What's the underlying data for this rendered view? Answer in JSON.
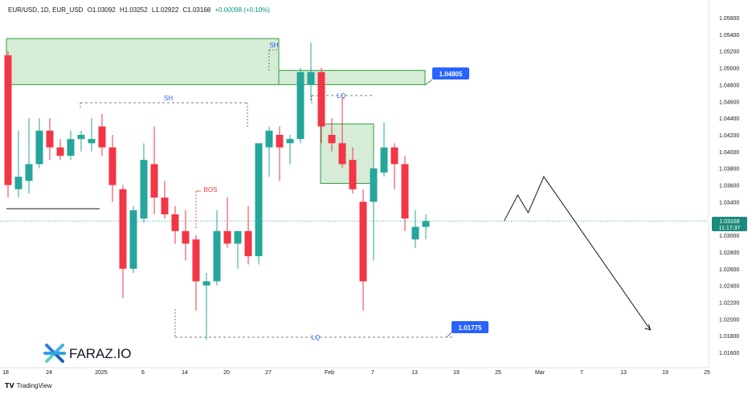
{
  "header": {
    "symbol": "EUR/USD, 1D, EUR_USD",
    "open": "O1.03092",
    "high": "H1.03252",
    "low": "L1.02922",
    "close": "C1.03168",
    "change": "+0.00098 (+0.10%)"
  },
  "footer": {
    "brand": "TradingView",
    "logo_text": "FARAZ.IO"
  },
  "colors": {
    "up": "#26a69a",
    "down": "#f23645",
    "zone_fill": "#c8e6c9",
    "zone_border": "#2e9e3e",
    "label_bg": "#2962ff",
    "price_bg": "#1b8a7a",
    "text": "#131722"
  },
  "chart_data": {
    "type": "candlestick",
    "ylim": [
      1.0145,
      1.058
    ],
    "y_ticks": [
      "1.05600",
      "1.05400",
      "1.05200",
      "1.05000",
      "1.04800",
      "1.04600",
      "1.04400",
      "1.04200",
      "1.04000",
      "1.03800",
      "1.03600",
      "1.03400",
      "1.03200",
      "1.03000",
      "1.02800",
      "1.02600",
      "1.02400",
      "1.02200",
      "1.02000",
      "1.01800",
      "1.01600"
    ],
    "x_ticks": [
      "18",
      "24",
      "2025",
      "6",
      "14",
      "20",
      "27",
      "Feb",
      "7",
      "13",
      "19",
      "25",
      "Mar",
      "7",
      "13",
      "19",
      "25"
    ],
    "ohlc": [
      [
        1.0515,
        1.052,
        1.0345,
        1.036
      ],
      [
        1.0355,
        1.0425,
        1.0345,
        1.037
      ],
      [
        1.0365,
        1.044,
        1.035,
        1.0385
      ],
      [
        1.0385,
        1.044,
        1.038,
        1.0425
      ],
      [
        1.0425,
        1.044,
        1.039,
        1.0405
      ],
      [
        1.0405,
        1.0415,
        1.039,
        1.0395
      ],
      [
        1.0395,
        1.0425,
        1.039,
        1.0415
      ],
      [
        1.0415,
        1.0425,
        1.04,
        1.042
      ],
      [
        1.041,
        1.044,
        1.04,
        1.0415
      ],
      [
        1.043,
        1.0445,
        1.0395,
        1.0405
      ],
      [
        1.0405,
        1.042,
        1.034,
        1.036
      ],
      [
        1.0355,
        1.036,
        1.0225,
        1.026
      ],
      [
        1.026,
        1.0335,
        1.0255,
        1.033
      ],
      [
        1.032,
        1.041,
        1.0315,
        1.039
      ],
      [
        1.0385,
        1.043,
        1.0325,
        1.0345
      ],
      [
        1.0345,
        1.0365,
        1.032,
        1.0325
      ],
      [
        1.0325,
        1.0335,
        1.029,
        1.0305
      ],
      [
        1.0305,
        1.033,
        1.027,
        1.029
      ],
      [
        1.0295,
        1.03,
        1.021,
        1.0245
      ],
      [
        1.024,
        1.0255,
        1.0175,
        1.0245
      ],
      [
        1.0245,
        1.033,
        1.024,
        1.0305
      ],
      [
        1.0305,
        1.0345,
        1.0285,
        1.029
      ],
      [
        1.029,
        1.0305,
        1.026,
        1.0305
      ],
      [
        1.0305,
        1.0335,
        1.0265,
        1.0275
      ],
      [
        1.0275,
        1.041,
        1.0265,
        1.041
      ],
      [
        1.0405,
        1.043,
        1.037,
        1.0425
      ],
      [
        1.042,
        1.043,
        1.0365,
        1.0405
      ],
      [
        1.041,
        1.042,
        1.0385,
        1.0415
      ],
      [
        1.0415,
        1.05,
        1.041,
        1.0495
      ],
      [
        1.048,
        1.053,
        1.046,
        1.0495
      ],
      [
        1.0495,
        1.05,
        1.041,
        1.043
      ],
      [
        1.042,
        1.044,
        1.04,
        1.041
      ],
      [
        1.041,
        1.0465,
        1.038,
        1.0385
      ],
      [
        1.039,
        1.0405,
        1.035,
        1.0355
      ],
      [
        1.034,
        1.0355,
        1.021,
        1.0245
      ],
      [
        1.034,
        1.0395,
        1.027,
        1.038
      ],
      [
        1.0375,
        1.0435,
        1.037,
        1.0405
      ],
      [
        1.0405,
        1.041,
        1.0355,
        1.0385
      ],
      [
        1.0385,
        1.0395,
        1.0305,
        1.032
      ],
      [
        1.0295,
        1.033,
        1.0285,
        1.031
      ],
      [
        1.031,
        1.0325,
        1.0295,
        1.0317
      ]
    ],
    "annotations": {
      "supply_zone_label": "SH",
      "sh_mid_label": "SH",
      "bos_label": "BOS",
      "lq_top_label": "LQ",
      "lq_bottom_label": "LQ",
      "level_upper": "1.04805",
      "level_lower": "1.01775",
      "price_label": "1.03168",
      "countdown": "11:17:37",
      "price_stub": "1.03"
    },
    "zones": [
      {
        "from": 0,
        "to": 33,
        "top": 1.0535,
        "bottom": 1.048
      },
      {
        "from": 34,
        "to": 50,
        "top": 1.0497,
        "bottom": 1.048
      },
      {
        "from": 38,
        "to": 44,
        "top": 1.0433,
        "bottom": 1.0362
      }
    ],
    "projection": [
      [
        47.5,
        1.0317
      ],
      [
        48.8,
        1.0348
      ],
      [
        49.8,
        1.0327
      ],
      [
        51.3,
        1.037
      ],
      [
        61.5,
        1.0187
      ]
    ]
  }
}
